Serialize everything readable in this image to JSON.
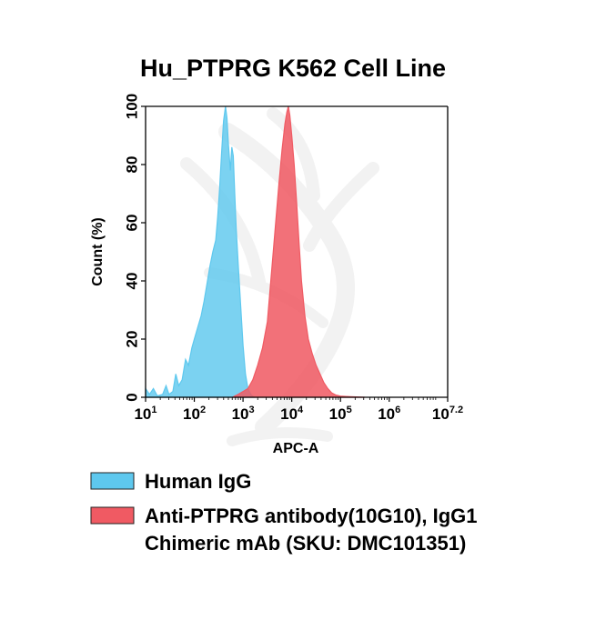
{
  "chart_data": {
    "type": "area",
    "title": "Hu_PTPRG K562 Cell Line",
    "xlabel": "APC-A",
    "ylabel": "Count  (%)",
    "x_scale": "log10",
    "xlim": [
      1,
      7.2
    ],
    "ylim": [
      0,
      100
    ],
    "x_ticks": [
      {
        "value": 1,
        "base": "10",
        "exp": "1"
      },
      {
        "value": 2,
        "base": "10",
        "exp": "2"
      },
      {
        "value": 3,
        "base": "10",
        "exp": "3"
      },
      {
        "value": 4,
        "base": "10",
        "exp": "4"
      },
      {
        "value": 5,
        "base": "10",
        "exp": "5"
      },
      {
        "value": 6,
        "base": "10",
        "exp": "6"
      },
      {
        "value": 7.2,
        "base": "10",
        "exp": "7.2"
      }
    ],
    "y_ticks": [
      0,
      20,
      40,
      60,
      80,
      100
    ],
    "series": [
      {
        "name": "Human IgG",
        "color": "#5ec8ee",
        "points": [
          [
            1.0,
            3
          ],
          [
            1.08,
            1
          ],
          [
            1.16,
            3
          ],
          [
            1.24,
            0.5
          ],
          [
            1.35,
            1
          ],
          [
            1.42,
            4
          ],
          [
            1.48,
            1
          ],
          [
            1.56,
            2
          ],
          [
            1.62,
            8
          ],
          [
            1.68,
            4
          ],
          [
            1.75,
            6
          ],
          [
            1.82,
            13
          ],
          [
            1.88,
            11
          ],
          [
            1.95,
            17
          ],
          [
            2.0,
            20
          ],
          [
            2.07,
            24
          ],
          [
            2.14,
            28
          ],
          [
            2.2,
            33
          ],
          [
            2.26,
            39
          ],
          [
            2.32,
            45
          ],
          [
            2.38,
            50
          ],
          [
            2.44,
            54
          ],
          [
            2.48,
            62
          ],
          [
            2.52,
            72
          ],
          [
            2.56,
            84
          ],
          [
            2.6,
            95
          ],
          [
            2.64,
            100
          ],
          [
            2.67,
            96
          ],
          [
            2.7,
            87
          ],
          [
            2.74,
            78
          ],
          [
            2.77,
            86
          ],
          [
            2.8,
            83
          ],
          [
            2.83,
            70
          ],
          [
            2.86,
            58
          ],
          [
            2.9,
            46
          ],
          [
            2.95,
            32
          ],
          [
            3.0,
            18
          ],
          [
            3.05,
            8
          ],
          [
            3.1,
            3
          ],
          [
            3.16,
            1
          ],
          [
            3.22,
            0
          ]
        ]
      },
      {
        "name": "Anti-PTPRG antibody(10G10), IgG1 Chimeric mAb (SKU: DMC101351)",
        "color": "#f05a63",
        "points": [
          [
            2.78,
            0
          ],
          [
            2.9,
            1
          ],
          [
            3.0,
            2
          ],
          [
            3.1,
            3
          ],
          [
            3.2,
            6
          ],
          [
            3.3,
            11
          ],
          [
            3.4,
            17
          ],
          [
            3.5,
            26
          ],
          [
            3.56,
            38
          ],
          [
            3.62,
            50
          ],
          [
            3.68,
            62
          ],
          [
            3.74,
            74
          ],
          [
            3.8,
            85
          ],
          [
            3.86,
            94
          ],
          [
            3.9,
            98
          ],
          [
            3.93,
            100
          ],
          [
            3.96,
            97
          ],
          [
            4.0,
            90
          ],
          [
            4.05,
            80
          ],
          [
            4.1,
            67
          ],
          [
            4.15,
            53
          ],
          [
            4.2,
            40
          ],
          [
            4.27,
            28
          ],
          [
            4.34,
            20
          ],
          [
            4.42,
            15
          ],
          [
            4.5,
            11
          ],
          [
            4.58,
            8
          ],
          [
            4.66,
            5
          ],
          [
            4.74,
            3
          ],
          [
            4.82,
            1.5
          ],
          [
            4.9,
            0.8
          ],
          [
            5.0,
            0.4
          ],
          [
            5.2,
            0.2
          ],
          [
            5.5,
            0
          ]
        ]
      }
    ],
    "legend_position": "bottom"
  }
}
